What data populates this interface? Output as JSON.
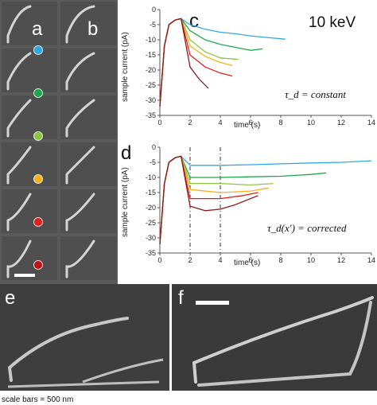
{
  "panel_labels": {
    "a": "a",
    "b": "b",
    "c": "c",
    "d": "d",
    "e": "e",
    "f": "f"
  },
  "scale_bar_caption": "scale bars = 500 nm",
  "sem_dots": [
    "#2fa8e0",
    "#1fa84a",
    "#8cc63f",
    "#f5b318",
    "#e02020",
    "#c0141a"
  ],
  "chart_data": [
    {
      "type": "line",
      "panel": "c",
      "annotation_top": "10 keV",
      "annotation_formula": "τ_d = constant",
      "xlabel": "time (s)",
      "ylabel": "sample current (pA)",
      "xlim": [
        0,
        14
      ],
      "ylim": [
        -35,
        0
      ],
      "xticks": [
        0,
        2,
        4,
        6,
        8,
        10,
        12,
        14
      ],
      "yticks": [
        0,
        -5,
        -10,
        -15,
        -20,
        -25,
        -30,
        -35
      ],
      "grid": false,
      "legend": "none",
      "series": [
        {
          "color": "#2fa8e0",
          "x": [
            0,
            0.3,
            0.6,
            1.0,
            1.4,
            2,
            3,
            4,
            5,
            6,
            7,
            8.3
          ],
          "y": [
            -32,
            -12,
            -5,
            -3.5,
            -3,
            -5,
            -6.5,
            -7.5,
            -8,
            -8.7,
            -9.2,
            -9.8
          ]
        },
        {
          "color": "#1fa84a",
          "x": [
            0,
            0.3,
            0.6,
            1.0,
            1.4,
            2,
            3,
            4,
            5,
            6,
            6.8
          ],
          "y": [
            -32,
            -12,
            -5,
            -3.5,
            -3,
            -7,
            -10,
            -11.5,
            -12.5,
            -13.5,
            -13
          ]
        },
        {
          "color": "#8cc63f",
          "x": [
            0,
            0.3,
            0.6,
            1.0,
            1.4,
            2,
            3,
            4,
            5.2
          ],
          "y": [
            -32,
            -12,
            -5,
            -3.5,
            -3,
            -10,
            -14,
            -16,
            -16.5
          ]
        },
        {
          "color": "#f5b318",
          "x": [
            0,
            0.3,
            0.6,
            1.0,
            1.4,
            2,
            3,
            4,
            4.8
          ],
          "y": [
            -32,
            -12,
            -5,
            -3.5,
            -3,
            -12,
            -15.5,
            -17.5,
            -18.5
          ]
        },
        {
          "color": "#e02020",
          "x": [
            0,
            0.3,
            0.6,
            1.0,
            1.4,
            2,
            3,
            4,
            4.8
          ],
          "y": [
            -32,
            -12,
            -5,
            -3.5,
            -3,
            -15,
            -19,
            -21,
            -22
          ]
        },
        {
          "color": "#8b1a1a",
          "x": [
            0,
            0.3,
            0.6,
            1.0,
            1.4,
            2,
            2.6,
            3.2
          ],
          "y": [
            -32,
            -12,
            -5,
            -3.5,
            -3,
            -19,
            -23,
            -26
          ]
        }
      ]
    },
    {
      "type": "line",
      "panel": "d",
      "annotation_formula": "τ_d(x′) = corrected",
      "xlabel": "time (s)",
      "ylabel": "sample current (pA)",
      "xlim": [
        0,
        14
      ],
      "ylim": [
        -35,
        0
      ],
      "xticks": [
        0,
        2,
        4,
        6,
        8,
        10,
        12,
        14
      ],
      "yticks": [
        0,
        -5,
        -10,
        -15,
        -20,
        -25,
        -30,
        -35
      ],
      "vlines": [
        2,
        4
      ],
      "grid": false,
      "legend": "none",
      "series": [
        {
          "color": "#2fa8e0",
          "x": [
            0,
            0.3,
            0.6,
            1.0,
            1.4,
            2,
            4,
            6,
            8,
            10,
            12,
            14
          ],
          "y": [
            -32,
            -12,
            -5,
            -3.5,
            -3,
            -6,
            -6,
            -5.8,
            -5.5,
            -5.2,
            -5,
            -4.5
          ]
        },
        {
          "color": "#1fa84a",
          "x": [
            0,
            0.3,
            0.6,
            1.0,
            1.4,
            2,
            4,
            6,
            8,
            10,
            11
          ],
          "y": [
            -32,
            -12,
            -5,
            -3.5,
            -3,
            -10,
            -10,
            -9.8,
            -9.6,
            -9,
            -8.5
          ]
        },
        {
          "color": "#8cc63f",
          "x": [
            0,
            0.3,
            0.6,
            1.0,
            1.4,
            2,
            4,
            6,
            7.5
          ],
          "y": [
            -32,
            -12,
            -5,
            -3.5,
            -3,
            -12,
            -12,
            -12.5,
            -12
          ]
        },
        {
          "color": "#f5b318",
          "x": [
            0,
            0.3,
            0.6,
            1.0,
            1.4,
            2,
            4,
            6,
            7.2
          ],
          "y": [
            -32,
            -12,
            -5,
            -3.5,
            -3,
            -14,
            -15,
            -14.5,
            -13.5
          ]
        },
        {
          "color": "#e02020",
          "x": [
            0,
            0.3,
            0.6,
            1.0,
            1.4,
            2,
            4,
            5.5,
            6.5
          ],
          "y": [
            -32,
            -12,
            -5,
            -3.5,
            -3,
            -17,
            -17,
            -16,
            -15
          ]
        },
        {
          "color": "#8b1a1a",
          "x": [
            0,
            0.3,
            0.6,
            1.0,
            1.4,
            2,
            3,
            4,
            5,
            6.5
          ],
          "y": [
            -32,
            -12,
            -5,
            -3.5,
            -3,
            -19.5,
            -21,
            -20.5,
            -19,
            -16
          ]
        }
      ]
    }
  ]
}
